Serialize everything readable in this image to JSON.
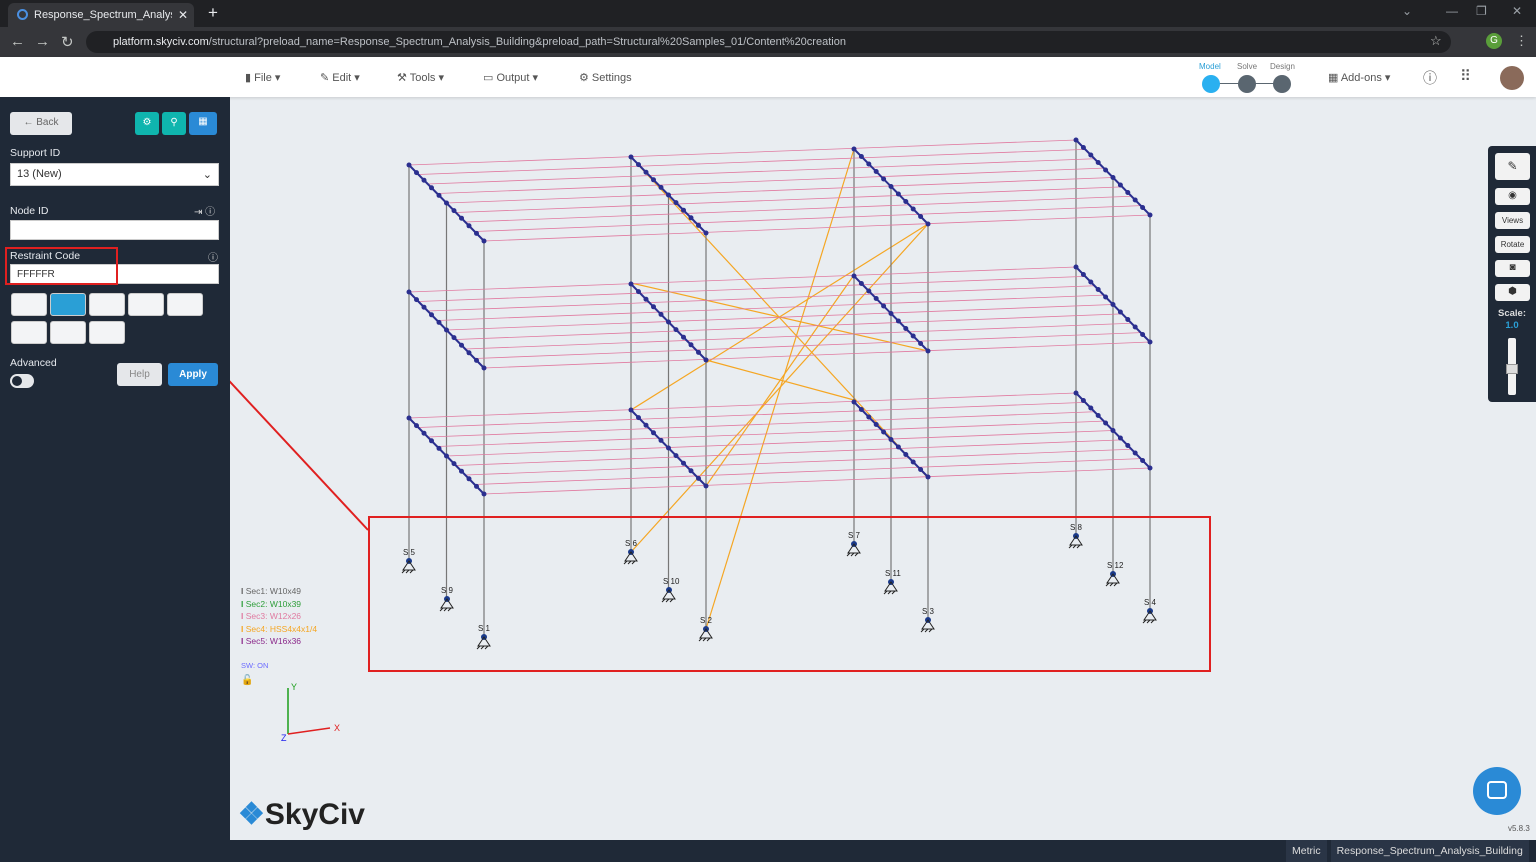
{
  "browser": {
    "tab_title": "Response_Spectrum_Analysis_Bu",
    "url_domain": "platform.skyciv.com",
    "url_path": "/structural?preload_name=Response_Spectrum_Analysis_Building&preload_path=Structural%20Samples_01/Content%20creation"
  },
  "menu": {
    "file": "File",
    "edit": "Edit",
    "tools": "Tools",
    "output": "Output",
    "settings": "Settings",
    "addons": "Add-ons"
  },
  "workflow": {
    "model": "Model",
    "solve": "Solve",
    "design": "Design",
    "active": "Model"
  },
  "sidebar": {
    "back": "Back",
    "support_id_label": "Support ID",
    "support_id_value": "13 (New)",
    "node_id_label": "Node ID",
    "node_id_value": "",
    "restraint_label": "Restraint Code",
    "restraint_value": "FFFFFR",
    "advanced_label": "Advanced",
    "advanced_on": false,
    "help": "Help",
    "apply": "Apply",
    "selected_support_type": 1
  },
  "legend": [
    {
      "label": "Sec1: W10x49",
      "color": "#666666"
    },
    {
      "label": "Sec2: W10x39",
      "color": "#2e9e3a"
    },
    {
      "label": "Sec3: W12x26",
      "color": "#e07aa0"
    },
    {
      "label": "Sec4: HSS4x4x1/4",
      "color": "#f5a623"
    },
    {
      "label": "Sec5: W16x36",
      "color": "#8b2a8b"
    }
  ],
  "sw_status": "SW: ON",
  "axes": {
    "x": "X",
    "y": "Y",
    "z": "Z"
  },
  "supports": [
    "S 1",
    "S 2",
    "S 3",
    "S 4",
    "S 5",
    "S 6",
    "S 7",
    "S 8",
    "S 9",
    "S 10",
    "S 11",
    "S 12"
  ],
  "right_toolbar": {
    "views": "Views",
    "rotate": "Rotate",
    "scale_label": "Scale:",
    "scale_value": "1.0"
  },
  "brand": "SkyCiv",
  "version": "v5.8.3",
  "status": {
    "units": "Metric",
    "model_name": "Response_Spectrum_Analysis_Building"
  },
  "colors": {
    "accent": "#2a9fd6",
    "teal": "#0fb5ae",
    "annotation": "#e02020",
    "column": "#777777",
    "beam_blue": "#2b2f8f",
    "beam_pink": "#e07aa0",
    "brace": "#f5a623"
  }
}
